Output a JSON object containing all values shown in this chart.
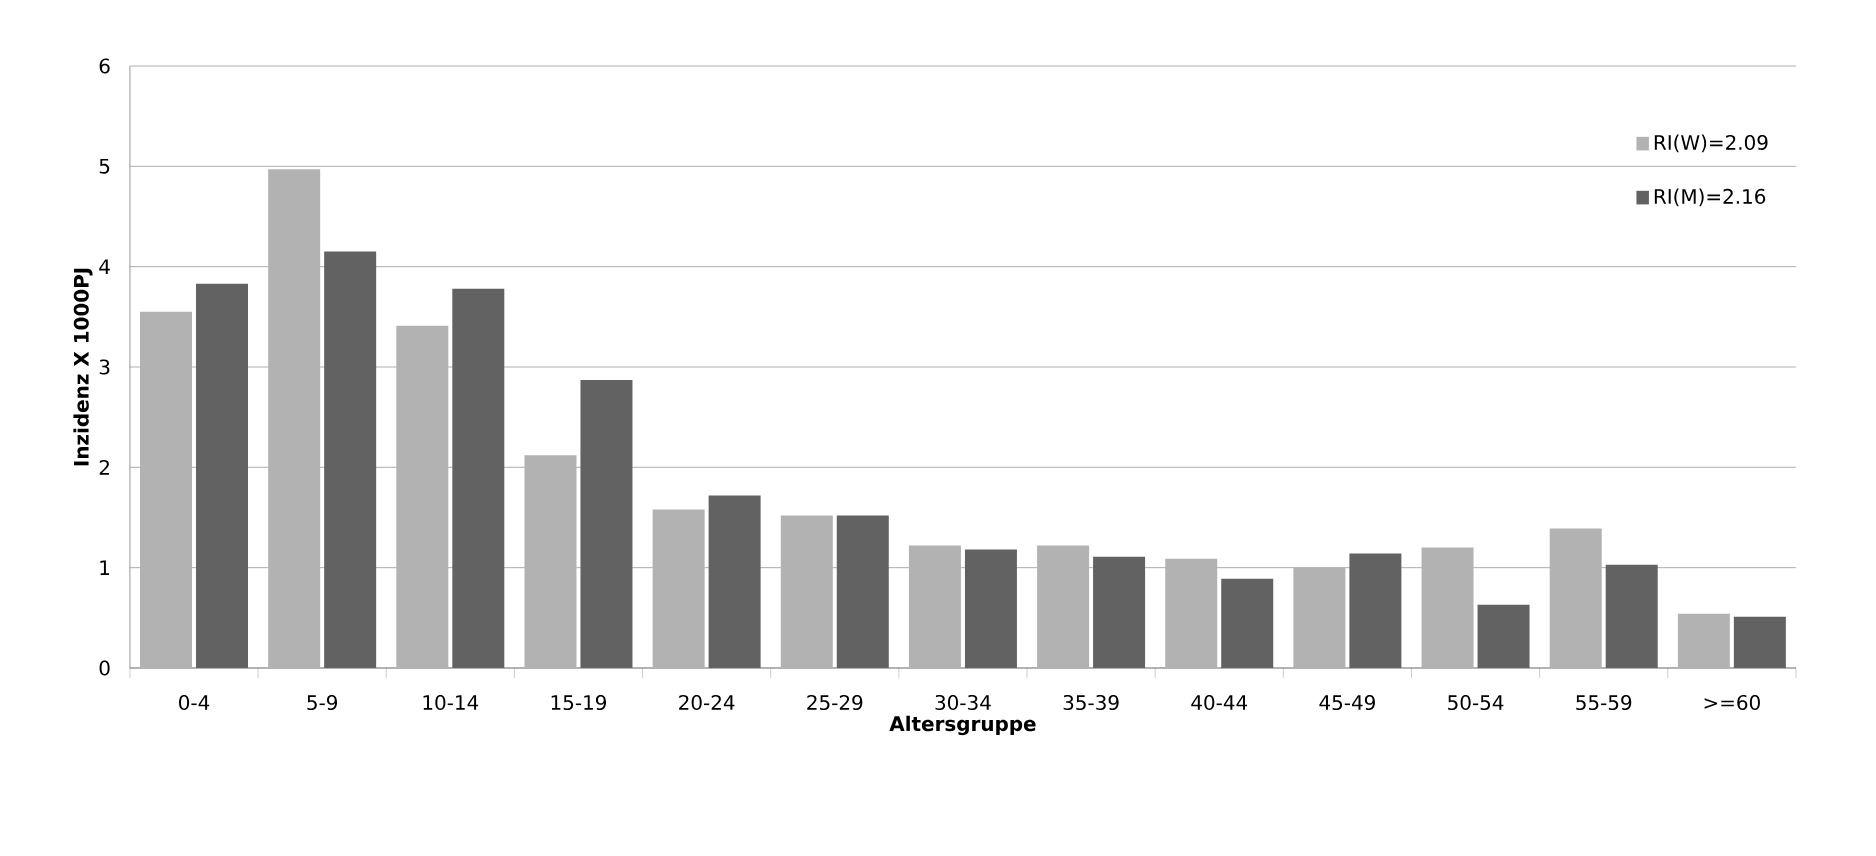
{
  "chart_data": {
    "type": "bar",
    "xlabel": "Altersgruppe",
    "ylabel": "Inzidenz  X 1000PJ",
    "categories": [
      "0-4",
      "5-9",
      "10-14",
      "15-19",
      "20-24",
      "25-29",
      "30-34",
      "35-39",
      "40-44",
      "45-49",
      "50-54",
      "55-59",
      ">=60"
    ],
    "series": [
      {
        "name": "RI(W)=2.09",
        "color": "#b2b2b2",
        "values": [
          3.55,
          4.97,
          3.41,
          2.12,
          1.58,
          1.52,
          1.22,
          1.22,
          1.09,
          1.0,
          1.2,
          1.39,
          0.54
        ]
      },
      {
        "name": "RI(M)=2.16",
        "color": "#626262",
        "values": [
          3.83,
          4.15,
          3.78,
          2.87,
          1.72,
          1.52,
          1.18,
          1.11,
          0.89,
          1.14,
          0.63,
          1.03,
          0.51
        ]
      }
    ],
    "ylim": [
      0,
      6
    ],
    "yticks": [
      0,
      1,
      2,
      3,
      4,
      5,
      6
    ],
    "grid": "y",
    "legend": "top right"
  }
}
